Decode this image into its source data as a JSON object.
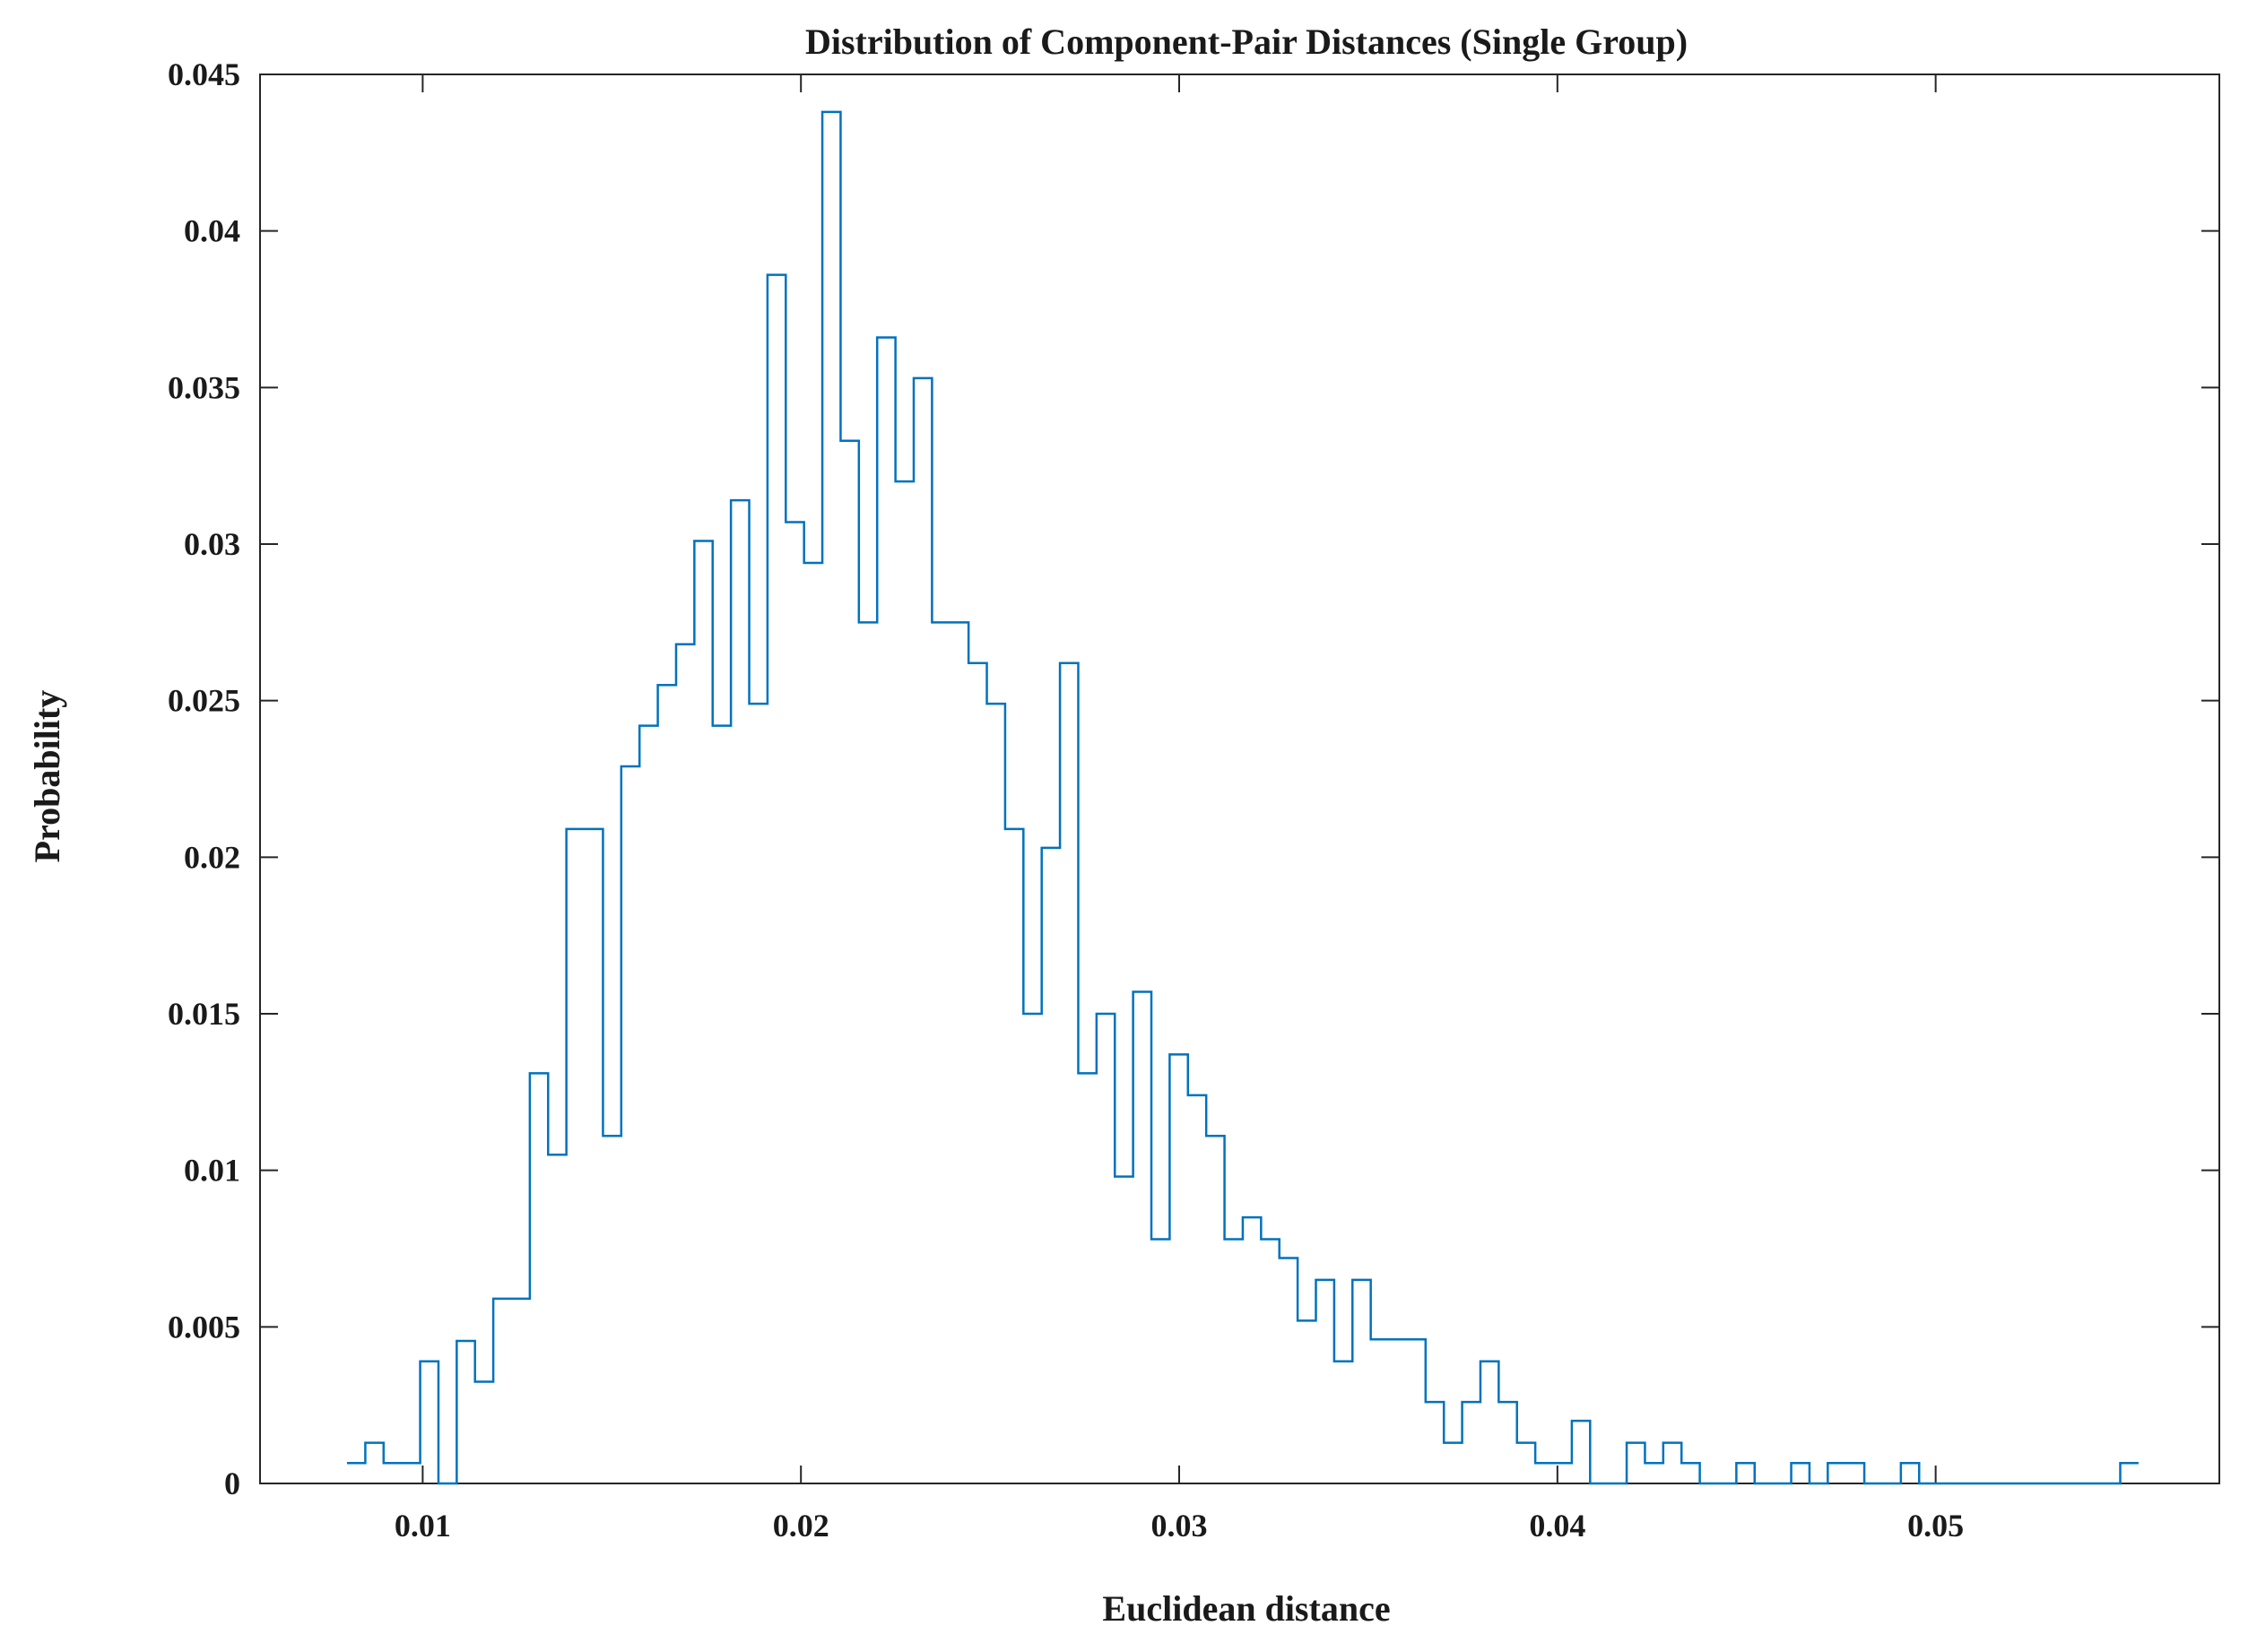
{
  "chart_data": {
    "type": "bar",
    "style": "stairs-histogram",
    "title": "Distribution of Component-Pair Distances (Single Group)",
    "xlabel": "Euclidean distance",
    "ylabel": "Probability",
    "xlim": [
      0.0057,
      0.0575
    ],
    "ylim": [
      0,
      0.045
    ],
    "xticks": [
      0.01,
      0.02,
      0.03,
      0.04,
      0.05
    ],
    "xtick_labels": [
      "0.01",
      "0.02",
      "0.03",
      "0.04",
      "0.05"
    ],
    "yticks": [
      0,
      0.005,
      0.01,
      0.015,
      0.02,
      0.025,
      0.03,
      0.035,
      0.04,
      0.045
    ],
    "ytick_labels": [
      "0",
      "0.005",
      "0.01",
      "0.015",
      "0.02",
      "0.025",
      "0.03",
      "0.035",
      "0.04",
      "0.045"
    ],
    "grid": false,
    "box": true,
    "line_color": "#0072BD",
    "bin_start": 0.008,
    "bin_width": 0.0004833,
    "values": [
      0.00065,
      0.0013,
      0.00065,
      0.00065,
      0.0039,
      0,
      0.00455,
      0.00325,
      0.0059,
      0.0059,
      0.0131,
      0.0105,
      0.0209,
      0.0209,
      0.0111,
      0.0229,
      0.0242,
      0.0255,
      0.0268,
      0.0301,
      0.0242,
      0.0314,
      0.0249,
      0.0386,
      0.0307,
      0.0294,
      0.0438,
      0.0333,
      0.0275,
      0.0366,
      0.032,
      0.0353,
      0.0275,
      0.0275,
      0.0262,
      0.0249,
      0.0209,
      0.015,
      0.0203,
      0.0262,
      0.0131,
      0.015,
      0.0098,
      0.0157,
      0.0078,
      0.0137,
      0.0124,
      0.0111,
      0.0078,
      0.0085,
      0.0078,
      0.0072,
      0.0052,
      0.0065,
      0.0039,
      0.0065,
      0.0046,
      0.0046,
      0.0046,
      0.0026,
      0.0013,
      0.0026,
      0.0039,
      0.0026,
      0.0013,
      0.00065,
      0.00065,
      0.002,
      0,
      0,
      0.0013,
      0.00065,
      0.0013,
      0.00065,
      0,
      0,
      0.00065,
      0,
      0,
      0.00065,
      0,
      0.00065,
      0.00065,
      0,
      0,
      0.00065,
      0,
      0,
      0,
      0,
      0,
      0,
      0,
      0,
      0,
      0,
      0,
      0.00065
    ]
  }
}
